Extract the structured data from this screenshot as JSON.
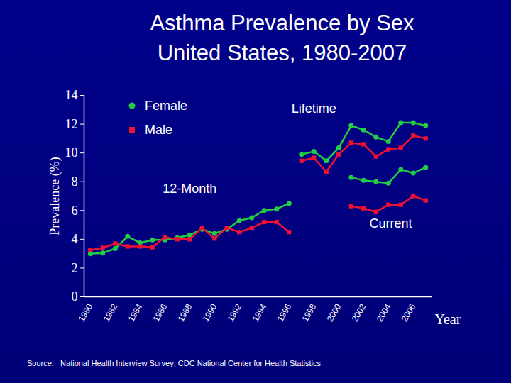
{
  "chart_data": {
    "type": "line",
    "title": "Asthma Prevalence by Sex\nUnited States, 1980-2007",
    "source": "Source:   National Health Interview Survey; CDC National Center for Health Statistics",
    "x_label": "Year",
    "y_label": "Prevalence (%)",
    "xlim": [
      1979.5,
      2007.5
    ],
    "xticks": [
      1980,
      1982,
      1984,
      1986,
      1988,
      1990,
      1992,
      1994,
      1996,
      1998,
      2000,
      2002,
      2004,
      2006
    ],
    "ylim": [
      0,
      14
    ],
    "yticks": [
      0,
      2,
      4,
      6,
      8,
      10,
      12,
      14
    ],
    "grid": false,
    "legend": "top-left",
    "x": [
      1980,
      1981,
      1982,
      1983,
      1984,
      1985,
      1986,
      1987,
      1988,
      1989,
      1990,
      1991,
      1992,
      1993,
      1994,
      1995,
      1996,
      1997,
      1998,
      1999,
      2000,
      2001,
      2002,
      2003,
      2004,
      2005,
      2006,
      2007
    ],
    "groups": [
      {
        "label": "12-Month",
        "series": [
          {
            "name": "Female",
            "color": "#22cc44",
            "marker": "circle",
            "values": [
              3.0,
              3.05,
              3.35,
              4.2,
              3.75,
              3.95,
              3.95,
              4.1,
              4.3,
              4.7,
              4.4,
              4.7,
              5.3,
              5.5,
              6.0,
              6.1,
              6.5,
              null,
              null,
              null,
              null,
              null,
              null,
              null,
              null,
              null,
              null,
              null
            ]
          },
          {
            "name": "Male",
            "color": "#ee1133",
            "marker": "square",
            "values": [
              3.25,
              3.4,
              3.7,
              3.5,
              3.5,
              3.45,
              4.15,
              4.0,
              4.0,
              4.8,
              4.05,
              4.8,
              4.5,
              4.8,
              5.2,
              5.2,
              4.5,
              null,
              null,
              null,
              null,
              null,
              null,
              null,
              null,
              null,
              null,
              null
            ]
          }
        ]
      },
      {
        "label": "Lifetime",
        "series": [
          {
            "name": "Female",
            "color": "#22cc44",
            "marker": "circle",
            "values": [
              null,
              null,
              null,
              null,
              null,
              null,
              null,
              null,
              null,
              null,
              null,
              null,
              null,
              null,
              null,
              null,
              null,
              9.9,
              10.1,
              9.45,
              10.35,
              11.9,
              11.6,
              11.1,
              10.8,
              12.1,
              12.1,
              11.9
            ]
          },
          {
            "name": "Male",
            "color": "#ee1133",
            "marker": "square",
            "values": [
              null,
              null,
              null,
              null,
              null,
              null,
              null,
              null,
              null,
              null,
              null,
              null,
              null,
              null,
              null,
              null,
              null,
              9.45,
              9.65,
              8.7,
              9.9,
              10.7,
              10.6,
              9.75,
              10.25,
              10.35,
              11.2,
              11.0
            ]
          }
        ]
      },
      {
        "label": "Current",
        "series": [
          {
            "name": "Female",
            "color": "#22cc44",
            "marker": "circle",
            "values": [
              null,
              null,
              null,
              null,
              null,
              null,
              null,
              null,
              null,
              null,
              null,
              null,
              null,
              null,
              null,
              null,
              null,
              null,
              null,
              null,
              null,
              8.3,
              8.1,
              8.0,
              7.9,
              8.85,
              8.6,
              9.0
            ]
          },
          {
            "name": "Male",
            "color": "#ee1133",
            "marker": "square",
            "values": [
              null,
              null,
              null,
              null,
              null,
              null,
              null,
              null,
              null,
              null,
              null,
              null,
              null,
              null,
              null,
              null,
              null,
              null,
              null,
              null,
              null,
              6.3,
              6.15,
              5.9,
              6.4,
              6.4,
              7.0,
              6.7
            ]
          }
        ]
      }
    ]
  }
}
